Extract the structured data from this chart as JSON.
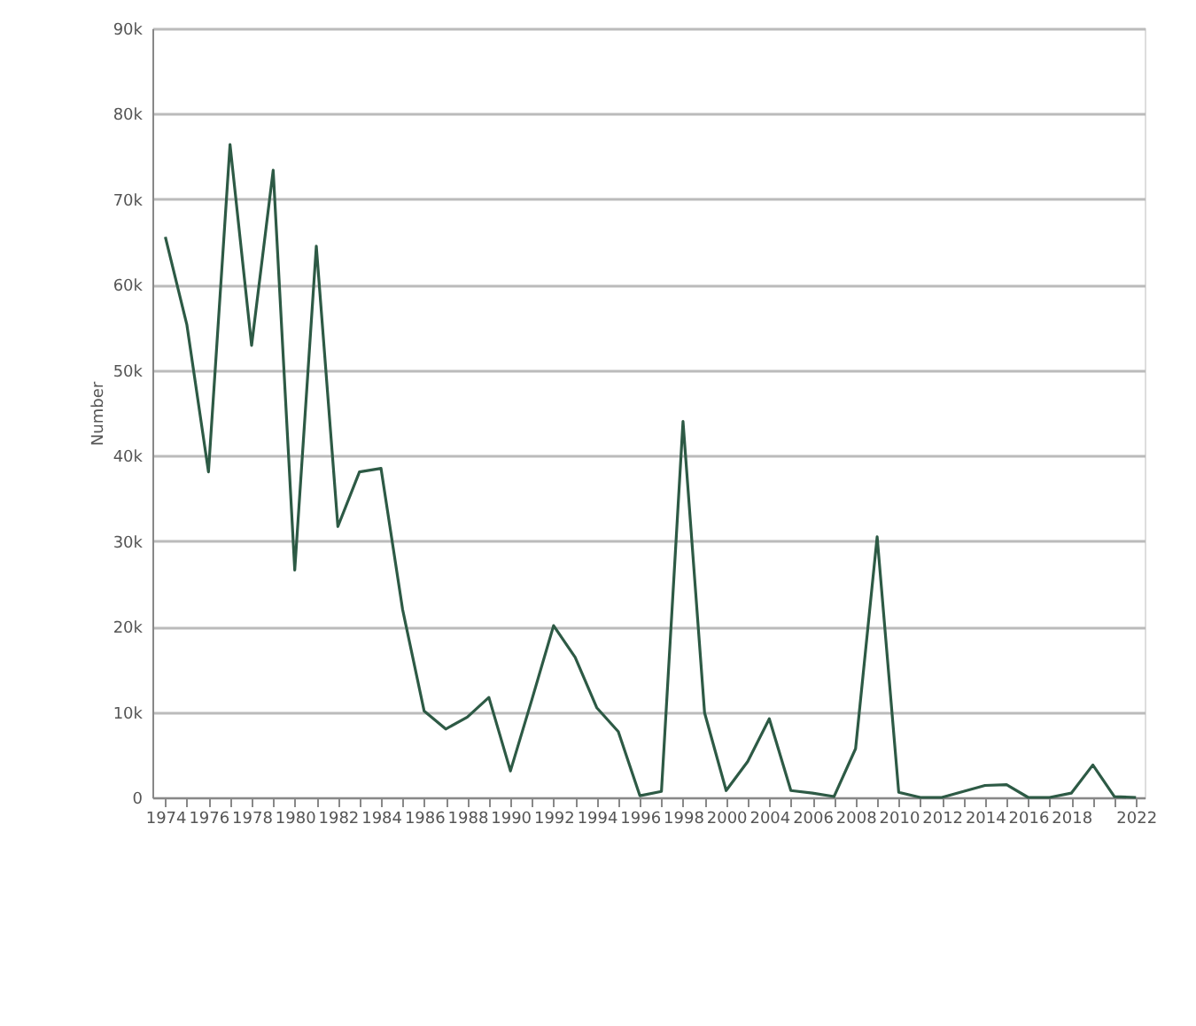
{
  "chart_data": {
    "type": "line",
    "ylabel": "Number",
    "categories": [
      "1974",
      null,
      "1976",
      null,
      "1978",
      null,
      "1980",
      null,
      "1982",
      null,
      "1984",
      null,
      "1986",
      null,
      "1988",
      null,
      "1990",
      null,
      "1992",
      null,
      "1994",
      null,
      "1996",
      null,
      "1998",
      null,
      "2000",
      null,
      "2004",
      null,
      "2006",
      null,
      "2008",
      null,
      "2010",
      null,
      "2012",
      null,
      "2014",
      null,
      "2016",
      null,
      "2018",
      null,
      null,
      "2022"
    ],
    "series": [
      {
        "color": "#2d5a45",
        "values": [
          65600,
          55300,
          38100,
          76400,
          52900,
          73400,
          26600,
          64500,
          31700,
          38100,
          38500,
          22000,
          10100,
          8000,
          9400,
          11700,
          3100,
          11500,
          20100,
          16400,
          10500,
          7700,
          200,
          700,
          44000,
          9900,
          800,
          4200,
          9200,
          800,
          500,
          100,
          5700,
          30500,
          600,
          0,
          0,
          700,
          1400,
          1500,
          0,
          0,
          500,
          3800,
          100,
          0
        ]
      }
    ],
    "ylim": [
      0,
      90000
    ],
    "yticks": [
      0,
      {
        "value": 10000,
        "label": "10k"
      },
      {
        "value": 20000,
        "label": "20k"
      },
      {
        "value": 30000,
        "label": "30k"
      },
      {
        "value": 40000,
        "label": "40k"
      },
      {
        "value": 50000,
        "label": "50k"
      },
      {
        "value": 60000,
        "label": "60k"
      },
      {
        "value": 70000,
        "label": "70k"
      },
      {
        "value": 80000,
        "label": "80k"
      },
      {
        "value": 90000,
        "label": "90k"
      }
    ],
    "grid": "y",
    "marker": "none",
    "line_style": "solid"
  }
}
